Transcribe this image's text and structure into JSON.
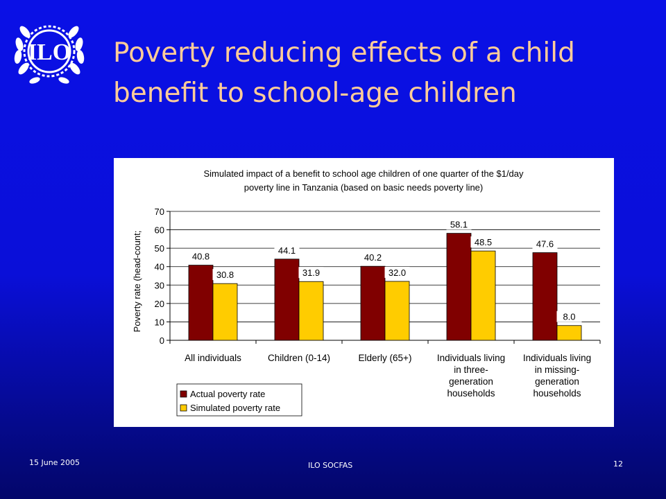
{
  "slide": {
    "title": "Poverty reducing effects of a child benefit to school-age children",
    "footer_date": "15 June 2005",
    "footer_center": "ILO SOCFAS",
    "page_number": "12",
    "logo_text": "ILO"
  },
  "colors": {
    "actual": "#800000",
    "simulated": "#ffcc00",
    "title": "#ffcc99"
  },
  "chart_data": {
    "type": "bar",
    "title_lines": [
      "Simulated impact of a benefit to school age children of one quarter of the $1/day",
      "poverty line in Tanzania (based on basic needs poverty line)"
    ],
    "ylabel": "Poverty rate (head-count;",
    "ylim": [
      0,
      70
    ],
    "yticks": [
      0,
      10,
      20,
      30,
      40,
      50,
      60,
      70
    ],
    "grid": true,
    "legend_position": "bottom-left",
    "categories": [
      [
        "All individuals"
      ],
      [
        "Children (0-14)"
      ],
      [
        "Elderly (65+)"
      ],
      [
        "Individuals living",
        "in three-",
        "generation",
        "households"
      ],
      [
        "Individuals living",
        "in missing-",
        "generation",
        "households"
      ]
    ],
    "series": [
      {
        "name": "Actual poverty rate",
        "values": [
          40.8,
          44.1,
          40.2,
          58.1,
          47.6
        ],
        "labels": [
          "40.8",
          "44.1",
          "40.2",
          "58.1",
          "47.6"
        ]
      },
      {
        "name": "Simulated poverty rate",
        "values": [
          30.8,
          31.9,
          32.0,
          48.5,
          8.0
        ],
        "labels": [
          "30.8",
          "31.9",
          "32.0",
          "48.5",
          "8.0"
        ]
      }
    ]
  }
}
